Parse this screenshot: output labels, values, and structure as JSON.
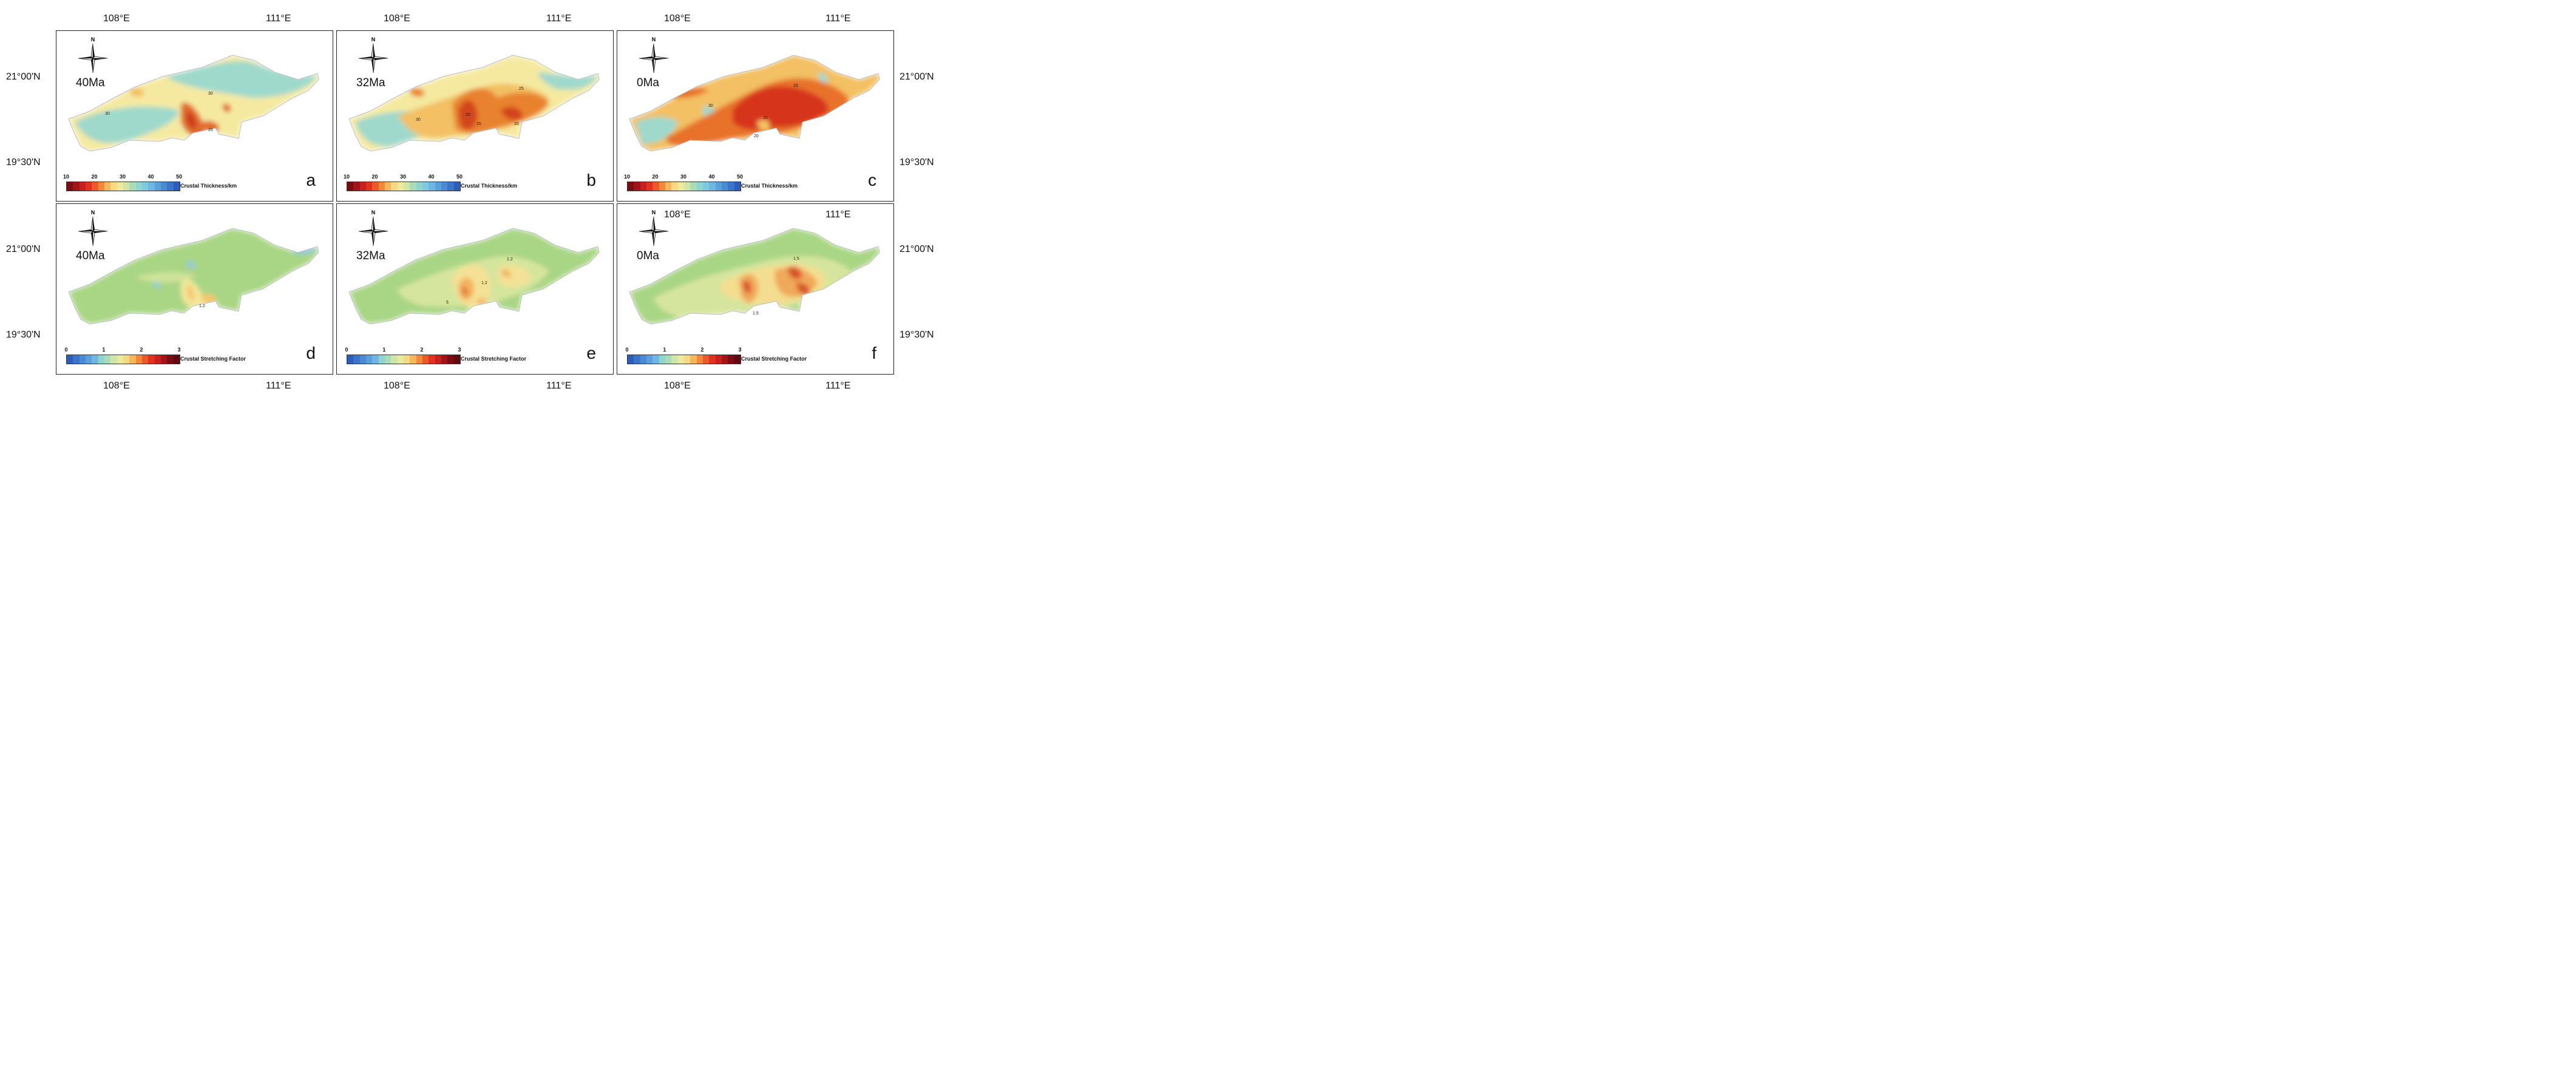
{
  "axes": {
    "top_lon_labels": [
      "108°E",
      "111°E",
      "108°E",
      "111°E",
      "108°E",
      "111°E"
    ],
    "bottom_lon_labels": [
      "108°E",
      "111°E",
      "108°E",
      "111°E",
      "108°E",
      "111°E"
    ],
    "inner_lon_labels": [
      "108°E",
      "111°E"
    ],
    "left_lat_labels": [
      "21°00'N",
      "19°30'N",
      "21°00'N",
      "19°30'N"
    ],
    "right_lat_labels": [
      "21°00'N",
      "19°30'N",
      "21°00'N",
      "19°30'N"
    ]
  },
  "compass_label": "N",
  "panels": [
    {
      "letter": "a",
      "age": "40Ma",
      "type": "thickness",
      "contours": [
        "30",
        "30",
        "25"
      ]
    },
    {
      "letter": "b",
      "age": "32Ma",
      "type": "thickness",
      "contours": [
        "30",
        "20",
        "25",
        "25",
        "20"
      ]
    },
    {
      "letter": "c",
      "age": "0Ma",
      "type": "thickness",
      "contours": [
        "30",
        "25",
        "25",
        "20"
      ]
    },
    {
      "letter": "d",
      "age": "40Ma",
      "type": "stretching",
      "contours": [
        "1.2"
      ]
    },
    {
      "letter": "e",
      "age": "32Ma",
      "type": "stretching",
      "contours": [
        "1.2",
        "1.2",
        "5"
      ]
    },
    {
      "letter": "f",
      "age": "0Ma",
      "type": "stretching",
      "contours": [
        "1.5",
        "1.5"
      ]
    }
  ],
  "legends": {
    "thickness": {
      "title": "Crustal Thickness/km",
      "ticks": [
        "10",
        "20",
        "30",
        "40",
        "50"
      ],
      "colors": [
        "#7a0d12",
        "#a3141a",
        "#c8201e",
        "#e0331f",
        "#ec5a2a",
        "#f2883a",
        "#f6b659",
        "#f8d882",
        "#ecea9c",
        "#cfe6a6",
        "#a9dcb8",
        "#8fd4cf",
        "#7fc9e0",
        "#6db7e2",
        "#5aa1dc",
        "#4a8bd3",
        "#3b74c9",
        "#2c5dbb"
      ]
    },
    "stretching": {
      "title": "Crustal Stretching Factor",
      "ticks": [
        "0",
        "1",
        "2",
        "3"
      ],
      "colors": [
        "#2c5dbb",
        "#3b74c9",
        "#4a8bd3",
        "#5aa1dc",
        "#6db7e2",
        "#8fd4cf",
        "#a9dcb8",
        "#cfe6a6",
        "#ecea9c",
        "#f8d882",
        "#f6b659",
        "#f2883a",
        "#ec5a2a",
        "#e0331f",
        "#c8201e",
        "#a3141a",
        "#7a0d12",
        "#5e0a0e"
      ]
    }
  },
  "field_colors": {
    "background": "#ffffff",
    "thickness_40": [
      "#9fd9cc",
      "#f5e9a0",
      "#f3c063",
      "#e06a2a",
      "#c9301f"
    ],
    "thickness_32": [
      "#9fd9cc",
      "#f5e9a0",
      "#f3c063",
      "#e8822f",
      "#d3441f"
    ],
    "thickness_0": [
      "#9fd9cc",
      "#f5e9a0",
      "#f3c063",
      "#e8722a",
      "#d6341e"
    ],
    "stretch_40": [
      "#a9d685",
      "#cfe39a",
      "#f1e79a",
      "#f6c66a",
      "#8fc9df"
    ],
    "stretch_32": [
      "#a9d685",
      "#d6e59d",
      "#f4e196",
      "#f3b35e",
      "#e07a35"
    ],
    "stretch_0": [
      "#a9d685",
      "#d6e59d",
      "#f4dd90",
      "#f0a85a",
      "#d8542a"
    ]
  }
}
